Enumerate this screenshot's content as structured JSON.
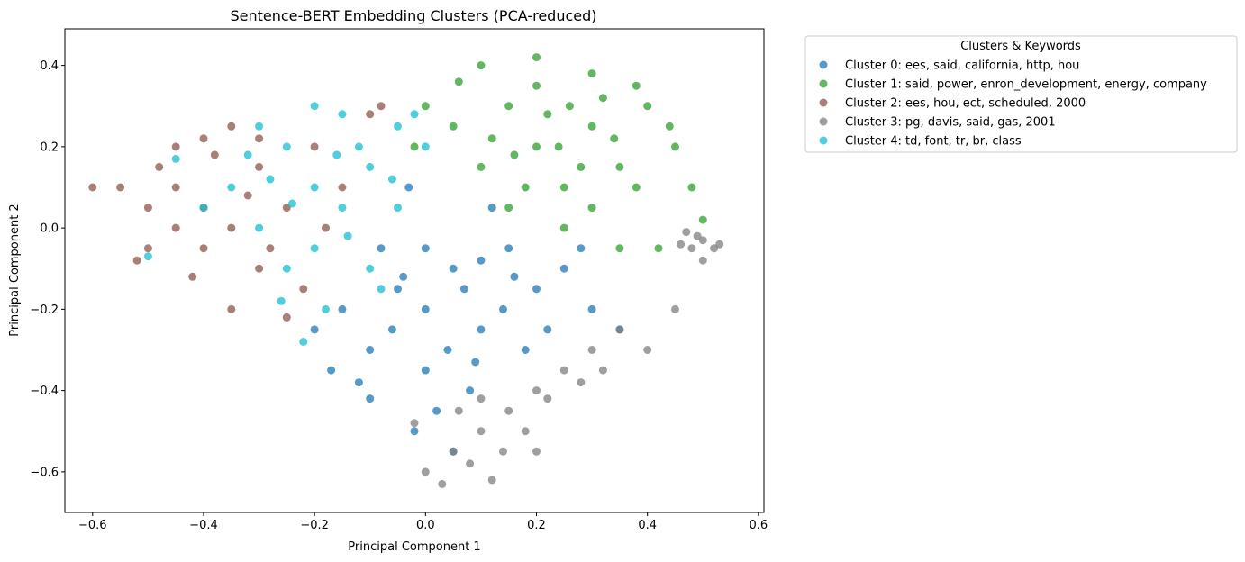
{
  "chart_data": {
    "type": "scatter",
    "title": "Sentence-BERT Embedding Clusters (PCA-reduced)",
    "xlabel": "Principal Component 1",
    "ylabel": "Principal Component 2",
    "xlim": [
      -0.65,
      0.61
    ],
    "ylim": [
      -0.7,
      0.49
    ],
    "xticks": [
      -0.6,
      -0.4,
      -0.2,
      0.0,
      0.2,
      0.4,
      0.6
    ],
    "yticks": [
      -0.6,
      -0.4,
      -0.2,
      0.0,
      0.2,
      0.4
    ],
    "xtick_labels": [
      "−0.6",
      "−0.4",
      "−0.2",
      "0.0",
      "0.2",
      "0.4",
      "0.6"
    ],
    "ytick_labels": [
      "−0.6",
      "−0.4",
      "−0.2",
      "0.0",
      "0.2",
      "0.4"
    ],
    "grid": false,
    "legend": {
      "title": "Clusters & Keywords",
      "placement": "outside upper-right"
    },
    "series": [
      {
        "name": "Cluster 0: ees, said, california, http, hou",
        "color": "#1f77b4",
        "points": [
          [
            0.0,
            -0.2
          ],
          [
            0.05,
            -0.1
          ],
          [
            -0.05,
            -0.15
          ],
          [
            0.1,
            -0.25
          ],
          [
            -0.1,
            -0.3
          ],
          [
            0.15,
            -0.05
          ],
          [
            0.2,
            -0.15
          ],
          [
            -0.15,
            -0.2
          ],
          [
            0.0,
            -0.35
          ],
          [
            0.08,
            -0.4
          ],
          [
            -0.08,
            -0.05
          ],
          [
            0.12,
            0.05
          ],
          [
            0.25,
            -0.1
          ],
          [
            -0.2,
            -0.25
          ],
          [
            0.3,
            -0.2
          ],
          [
            -0.12,
            -0.38
          ],
          [
            0.02,
            -0.45
          ],
          [
            0.18,
            -0.3
          ],
          [
            -0.03,
            0.1
          ],
          [
            0.22,
            -0.25
          ],
          [
            0.07,
            -0.15
          ],
          [
            -0.06,
            -0.25
          ],
          [
            0.1,
            -0.08
          ],
          [
            0.0,
            -0.05
          ],
          [
            0.14,
            -0.2
          ],
          [
            -0.1,
            -0.42
          ],
          [
            0.05,
            -0.55
          ],
          [
            -0.02,
            -0.5
          ],
          [
            0.35,
            -0.25
          ],
          [
            0.28,
            -0.05
          ],
          [
            -0.17,
            -0.35
          ],
          [
            0.04,
            -0.3
          ],
          [
            0.09,
            -0.33
          ],
          [
            0.16,
            -0.12
          ],
          [
            -0.04,
            -0.12
          ]
        ]
      },
      {
        "name": "Cluster 1: said, power, enron_development, energy, company",
        "color": "#2ca02c",
        "points": [
          [
            0.2,
            0.2
          ],
          [
            0.25,
            0.1
          ],
          [
            0.15,
            0.3
          ],
          [
            0.3,
            0.25
          ],
          [
            0.1,
            0.15
          ],
          [
            0.35,
            0.15
          ],
          [
            0.2,
            0.35
          ],
          [
            0.05,
            0.25
          ],
          [
            0.4,
            0.3
          ],
          [
            0.25,
            0.0
          ],
          [
            0.3,
            0.05
          ],
          [
            0.15,
            0.05
          ],
          [
            0.35,
            -0.05
          ],
          [
            0.45,
            0.2
          ],
          [
            0.1,
            0.4
          ],
          [
            0.2,
            0.42
          ],
          [
            0.3,
            0.38
          ],
          [
            0.0,
            0.3
          ],
          [
            -0.02,
            0.2
          ],
          [
            0.48,
            0.1
          ],
          [
            0.38,
            0.35
          ],
          [
            0.42,
            -0.05
          ],
          [
            0.22,
            0.28
          ],
          [
            0.12,
            0.22
          ],
          [
            0.28,
            0.15
          ],
          [
            0.32,
            0.32
          ],
          [
            0.18,
            0.1
          ],
          [
            0.5,
            0.02
          ],
          [
            0.44,
            0.25
          ],
          [
            0.06,
            0.36
          ],
          [
            0.26,
            0.3
          ],
          [
            0.34,
            0.22
          ],
          [
            0.16,
            0.18
          ],
          [
            0.24,
            0.2
          ],
          [
            0.38,
            0.1
          ]
        ]
      },
      {
        "name": "Cluster 2: ees, hou, ect, scheduled, 2000",
        "color": "#8c564b",
        "points": [
          [
            -0.4,
            0.05
          ],
          [
            -0.45,
            0.1
          ],
          [
            -0.35,
            0.0
          ],
          [
            -0.5,
            0.05
          ],
          [
            -0.3,
            0.15
          ],
          [
            -0.4,
            -0.05
          ],
          [
            -0.55,
            0.1
          ],
          [
            -0.45,
            0.2
          ],
          [
            -0.3,
            -0.1
          ],
          [
            -0.25,
            0.05
          ],
          [
            -0.2,
            0.2
          ],
          [
            -0.35,
            0.25
          ],
          [
            -0.5,
            -0.05
          ],
          [
            -0.42,
            -0.12
          ],
          [
            -0.15,
            0.1
          ],
          [
            -0.38,
            0.18
          ],
          [
            -0.28,
            -0.05
          ],
          [
            -0.6,
            0.1
          ],
          [
            -0.45,
            0.0
          ],
          [
            -0.32,
            0.08
          ],
          [
            -0.22,
            -0.15
          ],
          [
            -0.1,
            0.28
          ],
          [
            -0.48,
            0.15
          ],
          [
            -0.35,
            -0.2
          ],
          [
            -0.25,
            -0.22
          ],
          [
            -0.18,
            0.0
          ],
          [
            -0.08,
            0.3
          ],
          [
            -0.4,
            0.22
          ],
          [
            -0.52,
            -0.08
          ],
          [
            -0.3,
            0.22
          ]
        ]
      },
      {
        "name": "Cluster 3: pg, davis, said, gas, 2001",
        "color": "#7f7f7f",
        "points": [
          [
            0.1,
            -0.5
          ],
          [
            0.05,
            -0.55
          ],
          [
            0.15,
            -0.45
          ],
          [
            0.0,
            -0.6
          ],
          [
            0.2,
            -0.4
          ],
          [
            0.12,
            -0.62
          ],
          [
            0.08,
            -0.58
          ],
          [
            0.25,
            -0.35
          ],
          [
            0.3,
            -0.3
          ],
          [
            0.35,
            -0.25
          ],
          [
            0.18,
            -0.5
          ],
          [
            0.22,
            -0.42
          ],
          [
            -0.02,
            -0.48
          ],
          [
            0.4,
            -0.3
          ],
          [
            0.45,
            -0.2
          ],
          [
            0.48,
            -0.05
          ],
          [
            0.5,
            -0.03
          ],
          [
            0.46,
            -0.04
          ],
          [
            0.52,
            -0.05
          ],
          [
            0.49,
            -0.02
          ],
          [
            0.03,
            -0.63
          ],
          [
            0.14,
            -0.55
          ],
          [
            0.28,
            -0.38
          ],
          [
            0.06,
            -0.45
          ],
          [
            0.2,
            -0.55
          ],
          [
            0.5,
            -0.08
          ],
          [
            0.47,
            -0.01
          ],
          [
            0.53,
            -0.04
          ],
          [
            0.32,
            -0.35
          ],
          [
            0.1,
            -0.42
          ]
        ]
      },
      {
        "name": "Cluster 4: td, font, tr, br, class",
        "color": "#17becf",
        "points": [
          [
            -0.2,
            0.1
          ],
          [
            -0.25,
            0.2
          ],
          [
            -0.15,
            0.05
          ],
          [
            -0.3,
            0.0
          ],
          [
            -0.1,
            0.15
          ],
          [
            -0.2,
            -0.05
          ],
          [
            -0.05,
            0.25
          ],
          [
            -0.25,
            -0.1
          ],
          [
            -0.15,
            0.28
          ],
          [
            -0.3,
            0.25
          ],
          [
            -0.1,
            -0.1
          ],
          [
            -0.35,
            0.1
          ],
          [
            -0.2,
            0.3
          ],
          [
            -0.05,
            0.05
          ],
          [
            -0.18,
            -0.2
          ],
          [
            -0.12,
            0.2
          ],
          [
            -0.28,
            0.12
          ],
          [
            0.0,
            0.2
          ],
          [
            -0.22,
            -0.28
          ],
          [
            -0.08,
            -0.15
          ],
          [
            -0.4,
            0.05
          ],
          [
            -0.45,
            0.17
          ],
          [
            -0.5,
            -0.07
          ],
          [
            -0.16,
            0.18
          ],
          [
            -0.24,
            0.06
          ],
          [
            -0.32,
            0.18
          ],
          [
            -0.14,
            -0.02
          ],
          [
            -0.06,
            0.12
          ],
          [
            -0.26,
            -0.18
          ],
          [
            -0.02,
            0.28
          ]
        ]
      }
    ]
  }
}
